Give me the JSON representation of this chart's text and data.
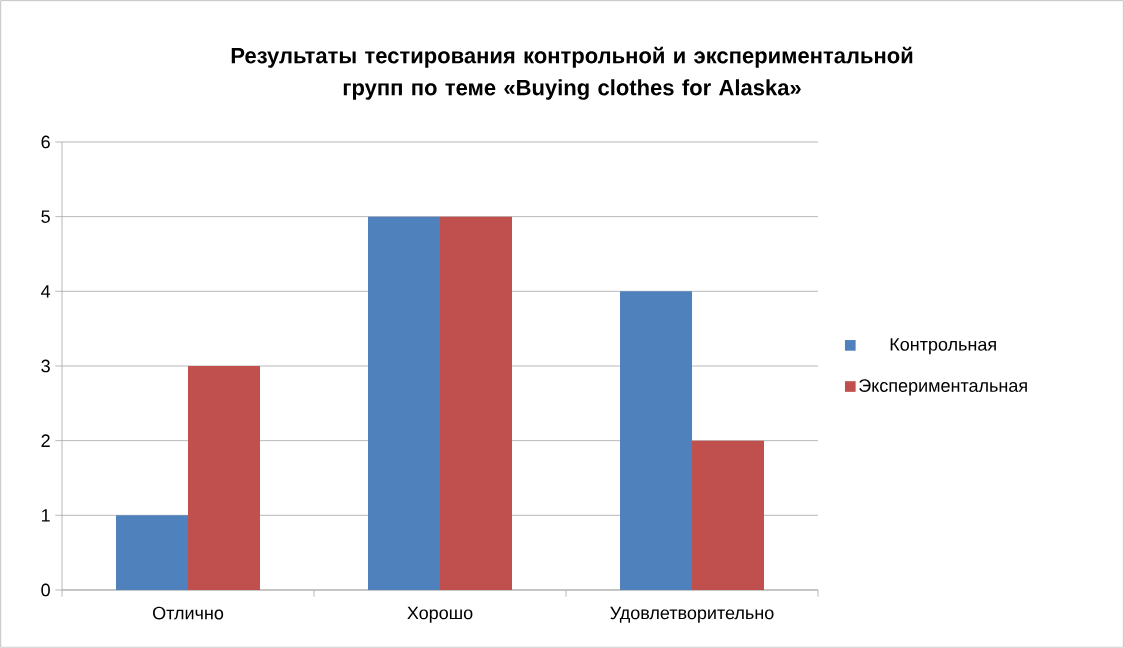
{
  "chart_data": {
    "type": "bar",
    "title": "Результаты тестирования контрольной и экспериментальной групп по теме «Buying clothes for Alaska»",
    "categories": [
      "Отлично",
      "Хорошо",
      "Удовлетворительно"
    ],
    "series": [
      {
        "name": "Контрольная",
        "color": "#4f81bd",
        "values": [
          1,
          5,
          4
        ]
      },
      {
        "name": "Экспериментальная",
        "color": "#c0504d",
        "values": [
          3,
          5,
          2
        ]
      }
    ],
    "ylim": [
      0,
      6
    ],
    "yticks": [
      0,
      1,
      2,
      3,
      4,
      5,
      6
    ],
    "grid": "y",
    "legend": "right"
  }
}
